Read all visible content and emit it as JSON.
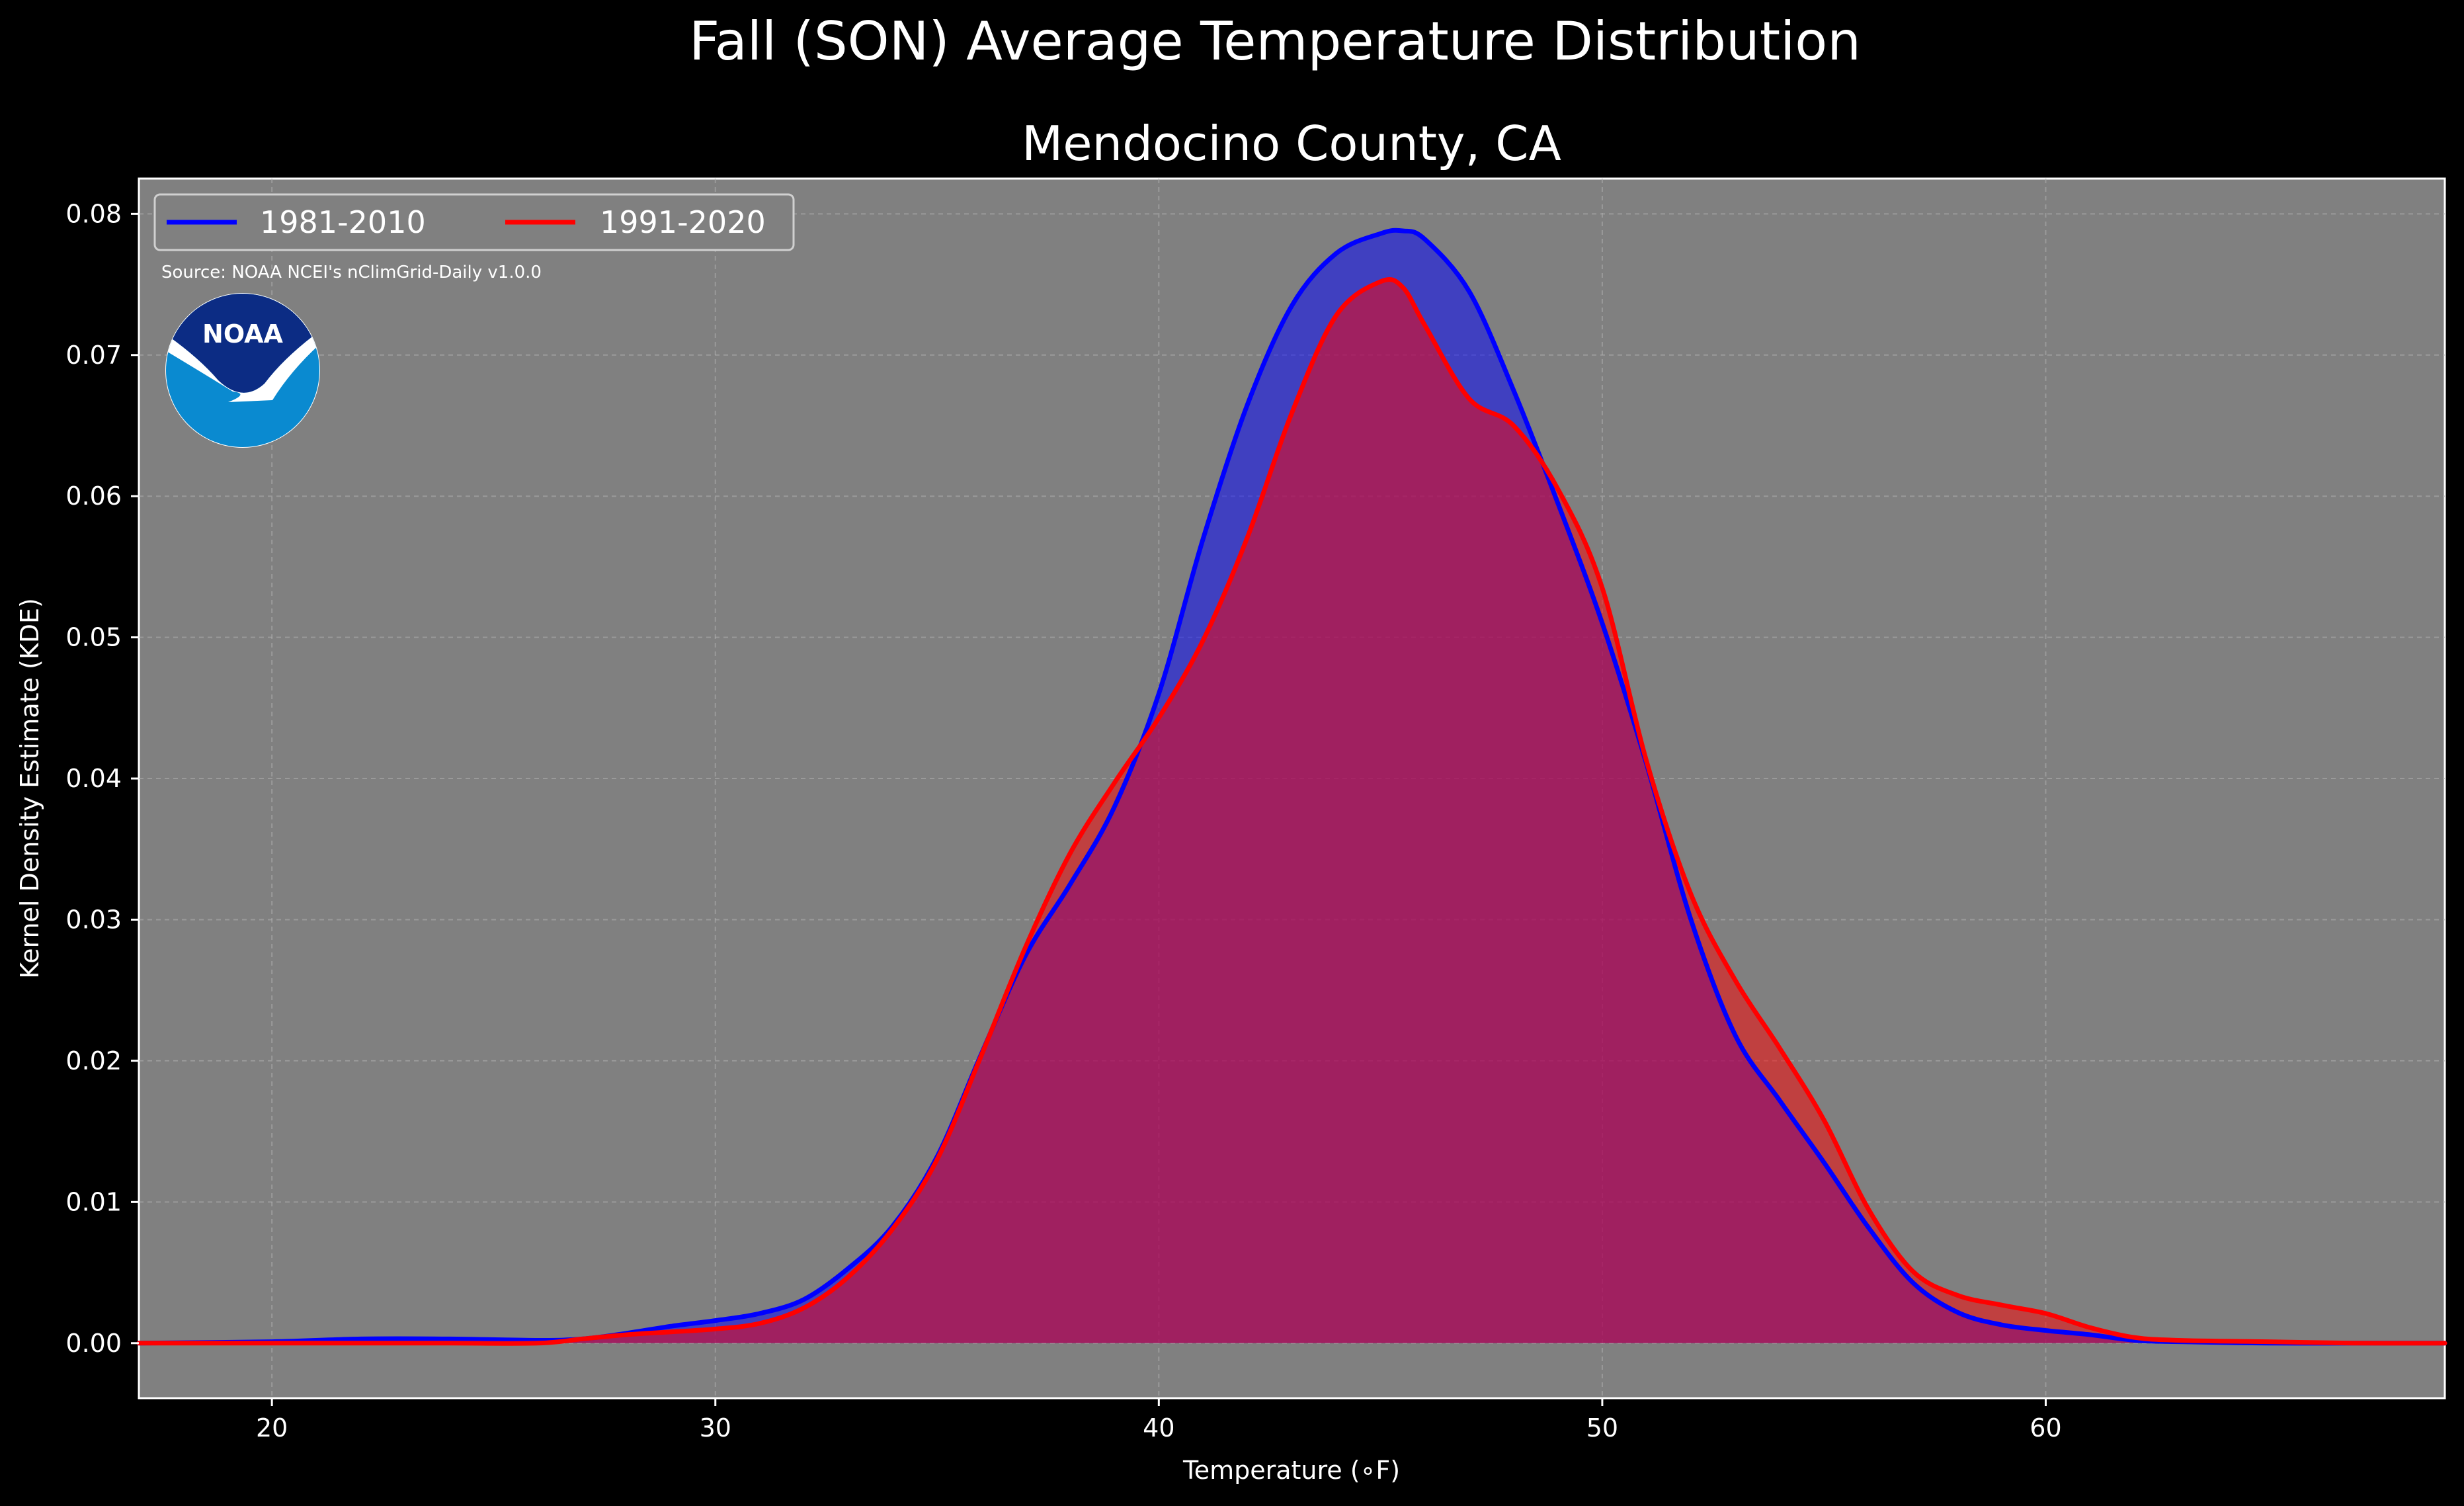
{
  "chart_data": {
    "type": "area",
    "suptitle": "Fall (SON) Average Temperature Distribution",
    "title": "Mendocino County, CA",
    "xlabel": "Temperature (∘F)",
    "ylabel": "Kernel Density Estimate (KDE)",
    "xlim": [
      17,
      69
    ],
    "ylim": [
      -0.0039,
      0.0825
    ],
    "xticks": [
      20,
      30,
      40,
      50,
      60
    ],
    "yticks": [
      0.0,
      0.01,
      0.02,
      0.03,
      0.04,
      0.05,
      0.06,
      0.07,
      0.08
    ],
    "ytick_labels": [
      "0.00",
      "0.01",
      "0.02",
      "0.03",
      "0.04",
      "0.05",
      "0.06",
      "0.07",
      "0.08"
    ],
    "grid": true,
    "legend_position": "top-left",
    "annotation": "Source: NOAA NCEI's nClimGrid-Daily v1.0.0",
    "series": [
      {
        "name": "1981-2010",
        "color": "#0000ff",
        "x": [
          17,
          20,
          22,
          24,
          26,
          27,
          28,
          29,
          30,
          31,
          32,
          33,
          34,
          35,
          36,
          37,
          38,
          39,
          40,
          41,
          42,
          43,
          44,
          45,
          45.5,
          46,
          47,
          48,
          49,
          50,
          51,
          52,
          53,
          54,
          55,
          56,
          57,
          58,
          59,
          60,
          61,
          62,
          63,
          65,
          67,
          69
        ],
        "y": [
          0.0,
          0.0001,
          0.0003,
          0.0003,
          0.0002,
          0.0003,
          0.0007,
          0.0012,
          0.0016,
          0.0021,
          0.0031,
          0.0053,
          0.0083,
          0.0132,
          0.0205,
          0.0275,
          0.0325,
          0.038,
          0.046,
          0.057,
          0.0665,
          0.0735,
          0.0772,
          0.0786,
          0.0788,
          0.0782,
          0.0745,
          0.0675,
          0.0595,
          0.051,
          0.041,
          0.03,
          0.0218,
          0.0172,
          0.0128,
          0.0082,
          0.0043,
          0.0022,
          0.0013,
          0.0009,
          0.0006,
          0.0002,
          0.0001,
          0.0,
          0.0,
          0.0
        ]
      },
      {
        "name": "1991-2020",
        "color": "#ff0000",
        "x": [
          17,
          20,
          22,
          24,
          26,
          27,
          28,
          29,
          30,
          31,
          32,
          33,
          34,
          35,
          36,
          37,
          38,
          39,
          40,
          41,
          42,
          43,
          44,
          45,
          45.5,
          46,
          47,
          48,
          49,
          50,
          51,
          52,
          53,
          54,
          55,
          56,
          57,
          58,
          59,
          60,
          61,
          62,
          63,
          65,
          67,
          69
        ],
        "y": [
          0.0,
          0.0,
          0.0,
          0.0,
          0.0,
          0.0003,
          0.0006,
          0.0008,
          0.001,
          0.0014,
          0.0025,
          0.0047,
          0.0081,
          0.013,
          0.0204,
          0.0281,
          0.0347,
          0.0397,
          0.0443,
          0.0498,
          0.0571,
          0.0659,
          0.0728,
          0.0752,
          0.0748,
          0.0721,
          0.0669,
          0.065,
          0.0605,
          0.0535,
          0.0412,
          0.0318,
          0.0257,
          0.0209,
          0.0158,
          0.0095,
          0.0051,
          0.0034,
          0.0027,
          0.0021,
          0.0011,
          0.0004,
          0.0002,
          0.0001,
          0.0,
          0.0
        ]
      }
    ]
  },
  "logo": {
    "name": "noaa-logo",
    "text": "NOAA"
  }
}
